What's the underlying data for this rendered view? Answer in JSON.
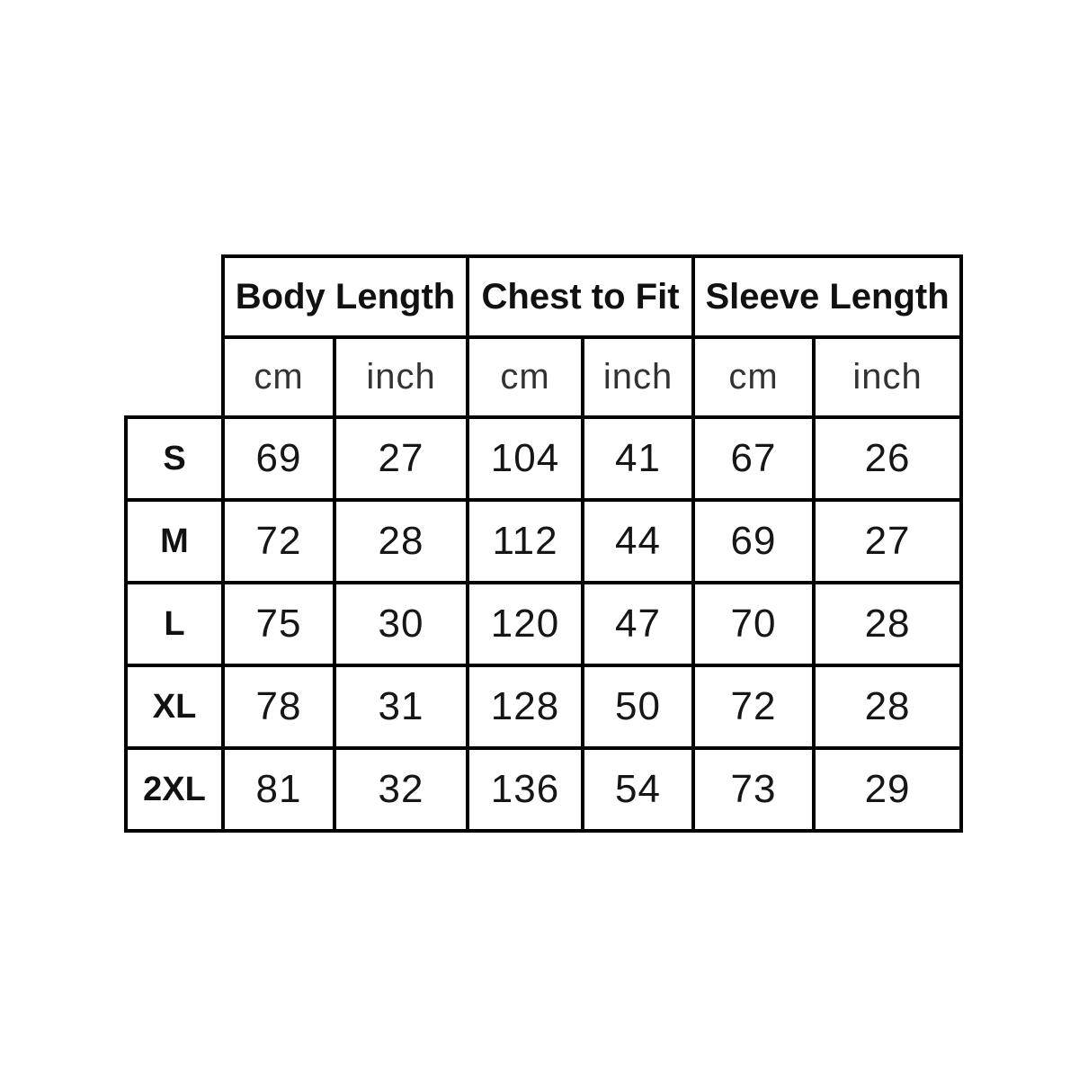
{
  "chart_data": {
    "type": "table",
    "title": "",
    "column_groups": [
      {
        "label": "Body Length",
        "units": [
          "cm",
          "inch"
        ]
      },
      {
        "label": "Chest to Fit",
        "units": [
          "cm",
          "inch"
        ]
      },
      {
        "label": "Sleeve Length",
        "units": [
          "cm",
          "inch"
        ]
      }
    ],
    "rows": [
      {
        "size": "S",
        "values": [
          69,
          27,
          104,
          41,
          67,
          26
        ]
      },
      {
        "size": "M",
        "values": [
          72,
          28,
          112,
          44,
          69,
          27
        ]
      },
      {
        "size": "L",
        "values": [
          75,
          30,
          120,
          47,
          70,
          28
        ]
      },
      {
        "size": "XL",
        "values": [
          78,
          31,
          128,
          50,
          72,
          28
        ]
      },
      {
        "size": "2XL",
        "values": [
          81,
          32,
          136,
          54,
          73,
          29
        ]
      }
    ],
    "colors": {
      "border": "#000000",
      "background": "#ffffff",
      "header_text": "#111111",
      "unit_text": "#333333",
      "value_text": "#161616"
    },
    "layout_hints": {
      "grid": "on",
      "corner_cell": "blank"
    }
  }
}
